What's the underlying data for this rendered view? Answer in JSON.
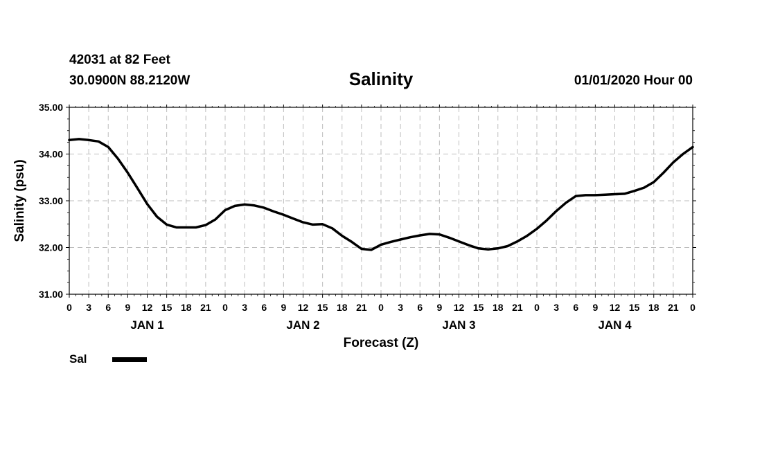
{
  "header": {
    "station": "42031 at 82 Feet",
    "coordinates": "30.0900N 88.2120W",
    "title": "Salinity",
    "timestamp": "01/01/2020 Hour 00"
  },
  "legend": {
    "label": "Sal",
    "color": "#000000"
  },
  "chart_data": {
    "type": "line",
    "title": "Salinity",
    "xlabel": "Forecast (Z)",
    "ylabel": "Salinity (psu)",
    "ylim": [
      31.0,
      35.0
    ],
    "yticks": [
      "31.00",
      "32.00",
      "33.00",
      "34.00",
      "35.00"
    ],
    "xlim": [
      0,
      96
    ],
    "x_tick_labels": [
      "0",
      "3",
      "6",
      "9",
      "12",
      "15",
      "18",
      "21",
      "0",
      "3",
      "6",
      "9",
      "12",
      "15",
      "18",
      "21",
      "0",
      "3",
      "6",
      "9",
      "12",
      "15",
      "18",
      "21",
      "0",
      "3",
      "6",
      "9",
      "12",
      "15",
      "18",
      "21",
      "0"
    ],
    "day_labels": [
      "JAN 1",
      "JAN 2",
      "JAN 3",
      "JAN 4"
    ],
    "grid": true,
    "series": [
      {
        "name": "Sal",
        "color": "#000000",
        "x": [
          0,
          1.5,
          3,
          4.5,
          6,
          7.5,
          9,
          10.5,
          12,
          13.5,
          15,
          16.5,
          18,
          19.5,
          21,
          22.5,
          24,
          25.5,
          27,
          28.5,
          30,
          31.5,
          33,
          34.5,
          36,
          37.5,
          39,
          40.5,
          42,
          43.5,
          45,
          46.5,
          48,
          49.5,
          51,
          52.5,
          54,
          55.5,
          57,
          58.5,
          60,
          61.5,
          63,
          64.5,
          66,
          67.5,
          69,
          70.5,
          72,
          73.5,
          75,
          76.5,
          78,
          79.5,
          81,
          82.5,
          84,
          85.5,
          87,
          88.5,
          90,
          91.5,
          93,
          94.5,
          96
        ],
        "y": [
          34.3,
          34.32,
          34.3,
          34.27,
          34.15,
          33.9,
          33.6,
          33.27,
          32.93,
          32.66,
          32.49,
          32.43,
          32.43,
          32.43,
          32.48,
          32.6,
          32.8,
          32.89,
          32.92,
          32.9,
          32.85,
          32.77,
          32.7,
          32.62,
          32.54,
          32.49,
          32.5,
          32.41,
          32.25,
          32.12,
          31.97,
          31.95,
          32.06,
          32.12,
          32.17,
          32.22,
          32.26,
          32.29,
          32.28,
          32.21,
          32.13,
          32.05,
          31.98,
          31.96,
          31.98,
          32.03,
          32.13,
          32.25,
          32.4,
          32.58,
          32.78,
          32.96,
          33.1,
          33.12,
          33.12,
          33.13,
          33.14,
          33.15,
          33.21,
          33.28,
          33.4,
          33.6,
          33.82,
          34.0,
          34.15
        ]
      }
    ]
  }
}
